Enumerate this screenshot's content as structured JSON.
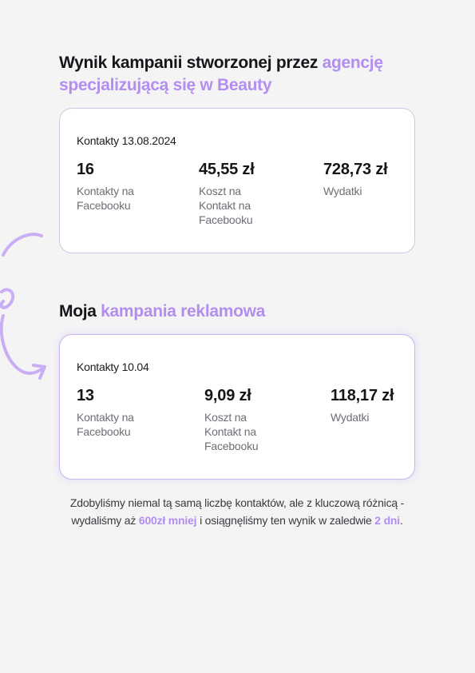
{
  "heading_1": {
    "text": "Wynik kampanii stworzonej przez ",
    "accent": "agencję specjalizującą się w Beauty"
  },
  "card_1": {
    "date": "Kontakty 13.08.2024",
    "stats": [
      {
        "value": "16",
        "label": "Kontakty na Facebooku"
      },
      {
        "value": "45,55 zł",
        "label": "Koszt na Kontakt na Facebooku"
      },
      {
        "value": "728,73 zł",
        "label": "Wydatki"
      }
    ]
  },
  "heading_2": {
    "text": "Moja ",
    "accent": "kampania reklamowa"
  },
  "card_2": {
    "date": "Kontakty 10.04",
    "stats": [
      {
        "value": "13",
        "label": "Kontakty na Facebooku"
      },
      {
        "value": "9,09 zł",
        "label": "Koszt na Kontakt na Facebooku"
      },
      {
        "value": "118,17 zł",
        "label": "Wydatki"
      }
    ]
  },
  "summary": {
    "part_1": "Zdobyliśmy niemal tą samą liczbę kontaktów, ale z kluczową różnicą - wydaliśmy aż ",
    "highlight_1": "600zł mniej",
    "part_2": " i osiągnęliśmy ten wynik w zaledwie ",
    "highlight_2": "2 dni",
    "part_3": "."
  },
  "colors": {
    "accent": "#b38df0",
    "background": "#f4f4f5",
    "card": "#ffffff"
  },
  "decoration": {
    "doodle": "curly-arrow-icon"
  }
}
